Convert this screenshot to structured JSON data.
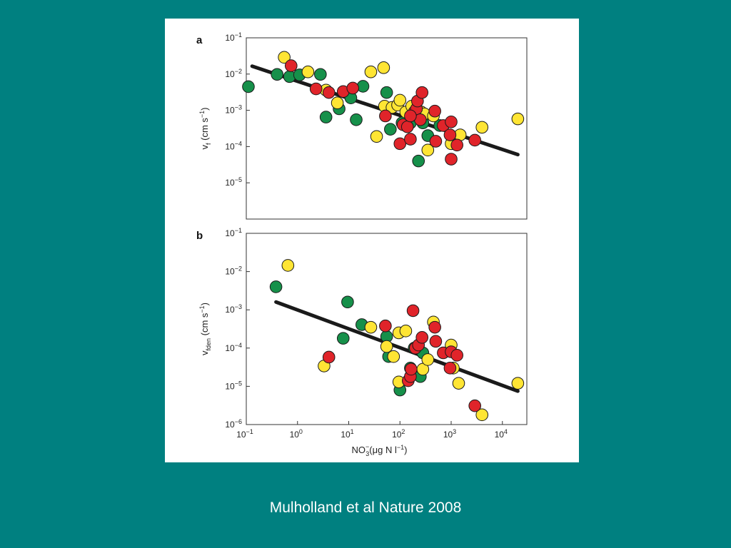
{
  "caption": "Mulholland et al Nature 2008",
  "colors": {
    "background": "#008080",
    "green": "#16904a",
    "yellow": "#ffe534",
    "red": "#e0242a",
    "fit": "#1a1a1a"
  },
  "chart_data": [
    {
      "type": "scatter",
      "panel": "a",
      "ylabel_main": "v",
      "ylabel_sub": "f",
      "ylabel_rest": "(cm s",
      "ylabel_exp": "−1",
      "ylabel_close": ")",
      "x_scale": "log",
      "y_scale": "log",
      "xlim": [
        0.1,
        30000
      ],
      "ylim": [
        1e-06,
        0.1
      ],
      "y_ticks": [
        {
          "value": 0.1,
          "base": "10",
          "exp": "−1"
        },
        {
          "value": 0.01,
          "base": "10",
          "exp": "−2"
        },
        {
          "value": 0.001,
          "base": "10",
          "exp": "−3"
        },
        {
          "value": 0.0001,
          "base": "10",
          "exp": "−4"
        },
        {
          "value": 1e-05,
          "base": "10",
          "exp": "−5"
        }
      ],
      "fit_line": {
        "x": [
          0.13,
          20000
        ],
        "y": [
          0.0165,
          6e-05
        ]
      },
      "series": [
        {
          "color": "green",
          "points": [
            [
              0.11,
              0.0045
            ],
            [
              0.4,
              0.0098
            ],
            [
              0.7,
              0.0085
            ],
            [
              1.1,
              0.0095
            ],
            [
              2.8,
              0.0098
            ],
            [
              3.6,
              0.00065
            ],
            [
              6.5,
              0.0011
            ],
            [
              11,
              0.0022
            ],
            [
              14,
              0.00055
            ],
            [
              19,
              0.0046
            ],
            [
              55,
              0.0031
            ],
            [
              65,
              0.0003
            ],
            [
              110,
              0.00045
            ],
            [
              160,
              0.00045
            ],
            [
              230,
              4e-05
            ],
            [
              280,
              0.00045
            ],
            [
              350,
              0.0002
            ],
            [
              600,
              0.00038
            ]
          ]
        },
        {
          "color": "yellow",
          "points": [
            [
              0.55,
              0.029
            ],
            [
              1.6,
              0.0115
            ],
            [
              3.6,
              0.0036
            ],
            [
              6,
              0.0016
            ],
            [
              27,
              0.0115
            ],
            [
              48,
              0.015
            ],
            [
              50,
              0.0013
            ],
            [
              70,
              0.0012
            ],
            [
              90,
              0.0014
            ],
            [
              100,
              0.0019
            ],
            [
              130,
              0.0009
            ],
            [
              170,
              0.0013
            ],
            [
              260,
              0.0009
            ],
            [
              300,
              0.0008
            ],
            [
              350,
              8e-05
            ],
            [
              450,
              0.0007
            ],
            [
              1000,
              0.00012
            ],
            [
              1500,
              0.00021
            ],
            [
              4000,
              0.00034
            ],
            [
              20000,
              0.00058
            ],
            [
              35,
              0.00019
            ]
          ]
        },
        {
          "color": "red",
          "points": [
            [
              0.75,
              0.017
            ],
            [
              2.3,
              0.0039
            ],
            [
              4.1,
              0.0031
            ],
            [
              7.8,
              0.0033
            ],
            [
              12,
              0.0041
            ],
            [
              52,
              0.0007
            ],
            [
              100,
              0.00012
            ],
            [
              115,
              0.0004
            ],
            [
              140,
              0.00035
            ],
            [
              160,
              0.00016
            ],
            [
              190,
              0.0009
            ],
            [
              210,
              0.0011
            ],
            [
              220,
              0.0018
            ],
            [
              250,
              0.00055
            ],
            [
              270,
              0.0031
            ],
            [
              480,
              0.00095
            ],
            [
              500,
              0.00014
            ],
            [
              700,
              0.00038
            ],
            [
              950,
              0.00021
            ],
            [
              1000,
              0.00048
            ],
            [
              1000,
              4.5e-05
            ],
            [
              1300,
              0.00011
            ],
            [
              2900,
              0.00015
            ],
            [
              160,
              0.0007
            ]
          ]
        }
      ]
    },
    {
      "type": "scatter",
      "panel": "b",
      "ylabel_main": "v",
      "ylabel_sub": "fden",
      "ylabel_rest": "(cm s",
      "ylabel_exp": "−1",
      "ylabel_close": ")",
      "xlabel_main": "NO",
      "xlabel_sub": "3",
      "xlabel_sup": "−",
      "xlabel_rest": "(μg N l",
      "xlabel_exp": "−1",
      "xlabel_close": ")",
      "x_scale": "log",
      "y_scale": "log",
      "xlim": [
        0.1,
        30000
      ],
      "ylim": [
        1e-06,
        0.1
      ],
      "x_ticks": [
        {
          "value": 0.1,
          "base": "10",
          "exp": "−1"
        },
        {
          "value": 1,
          "base": "10",
          "exp": "0"
        },
        {
          "value": 10,
          "base": "10",
          "exp": "1"
        },
        {
          "value": 100,
          "base": "10",
          "exp": "2"
        },
        {
          "value": 1000,
          "base": "10",
          "exp": "3"
        },
        {
          "value": 10000,
          "base": "10",
          "exp": "4"
        }
      ],
      "y_ticks": [
        {
          "value": 0.1,
          "base": "10",
          "exp": "−1"
        },
        {
          "value": 0.01,
          "base": "10",
          "exp": "−2"
        },
        {
          "value": 0.001,
          "base": "10",
          "exp": "−3"
        },
        {
          "value": 0.0001,
          "base": "10",
          "exp": "−4"
        },
        {
          "value": 1e-05,
          "base": "10",
          "exp": "−5"
        },
        {
          "value": 1e-06,
          "base": "10",
          "exp": "−6"
        }
      ],
      "fit_line": {
        "x": [
          0.38,
          20000
        ],
        "y": [
          0.0016,
          7.5e-06
        ]
      },
      "series": [
        {
          "color": "green",
          "points": [
            [
              0.38,
              0.004
            ],
            [
              7.8,
              0.00018
            ],
            [
              9.5,
              0.0016
            ],
            [
              18,
              0.00041
            ],
            [
              55,
              0.0002
            ],
            [
              60,
              6e-05
            ],
            [
              100,
              8e-06
            ],
            [
              160,
              3e-05
            ],
            [
              190,
              0.0001
            ],
            [
              250,
              1.8e-05
            ],
            [
              280,
              7.5e-05
            ]
          ]
        },
        {
          "color": "yellow",
          "points": [
            [
              0.65,
              0.0145
            ],
            [
              3.3,
              3.4e-05
            ],
            [
              27,
              0.00035
            ],
            [
              55,
              0.00011
            ],
            [
              75,
              6e-05
            ],
            [
              95,
              1.3e-05
            ],
            [
              95,
              0.00025
            ],
            [
              130,
              0.00028
            ],
            [
              280,
              2.8e-05
            ],
            [
              350,
              5e-05
            ],
            [
              450,
              0.00048
            ],
            [
              1000,
              0.00012
            ],
            [
              1100,
              3e-05
            ],
            [
              1400,
              1.2e-05
            ],
            [
              4000,
              1.8e-06
            ],
            [
              20000,
              1.2e-05
            ]
          ]
        },
        {
          "color": "red",
          "points": [
            [
              4.1,
              5.8e-05
            ],
            [
              52,
              0.00038
            ],
            [
              145,
              1.4e-05
            ],
            [
              160,
              1.8e-05
            ],
            [
              165,
              2.8e-05
            ],
            [
              180,
              0.00095
            ],
            [
              200,
              0.0001
            ],
            [
              230,
              0.00012
            ],
            [
              270,
              0.00019
            ],
            [
              480,
              0.00035
            ],
            [
              500,
              0.00015
            ],
            [
              700,
              7.5e-05
            ],
            [
              950,
              3e-05
            ],
            [
              1000,
              8e-05
            ],
            [
              1300,
              6.5e-05
            ],
            [
              2900,
              3.1e-06
            ]
          ]
        }
      ]
    }
  ]
}
